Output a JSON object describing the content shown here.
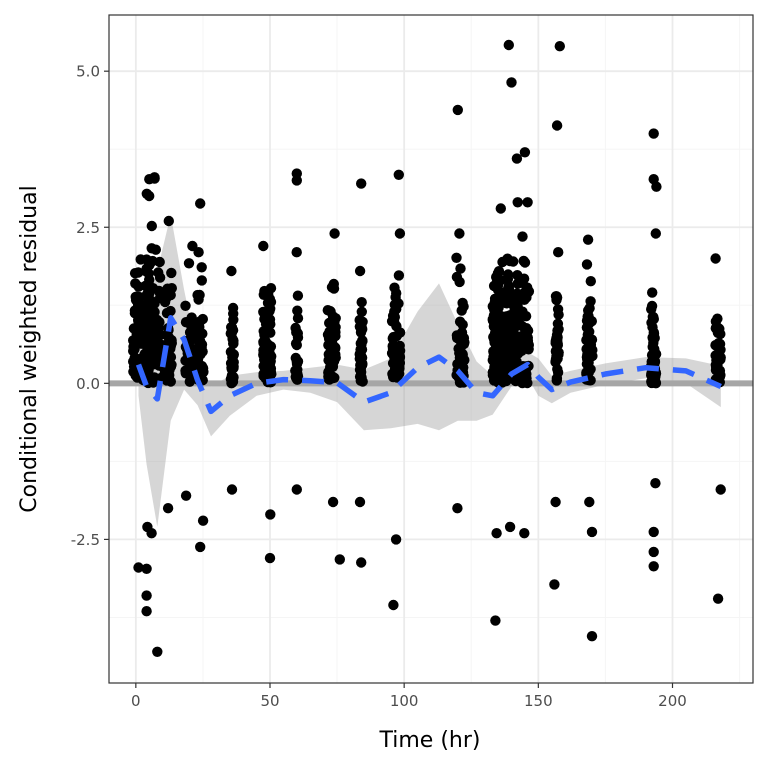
{
  "colors": {
    "background": "#ffffff",
    "panel_border": "#333333",
    "grid_major": "#ebebeb",
    "grid_minor": "#f5f5f5",
    "points": "#000000",
    "smooth_line": "#3366ff",
    "confidence_band": "#999999",
    "reference_line": "#a6a6a6",
    "tick_label": "#4d4d4d"
  },
  "chart_data": {
    "type": "scatter",
    "title": "",
    "xlabel": "Time (hr)",
    "ylabel": "Conditional weighted residual",
    "xlim": [
      -10,
      230
    ],
    "ylim": [
      -4.8,
      5.9
    ],
    "x_ticks": [
      0,
      50,
      100,
      150,
      200
    ],
    "x_tick_labels": [
      "0",
      "50",
      "100",
      "150",
      "200"
    ],
    "y_ticks": [
      -2.5,
      0.0,
      2.5,
      5.0
    ],
    "y_tick_labels": [
      "-2.5",
      "0.0",
      "2.5",
      "5.0"
    ],
    "grid": true,
    "reference_line": {
      "y": 0
    },
    "point_clusters": [
      {
        "x": 2,
        "x_spread": 3,
        "n": 130,
        "ymin": -2.3,
        "ymax": 3.0
      },
      {
        "x": 7,
        "x_spread": 3,
        "n": 90,
        "ymin": -2.4,
        "ymax": 3.3
      },
      {
        "x": 12,
        "x_spread": 1.5,
        "n": 45,
        "ymin": -2.0,
        "ymax": 2.6
      },
      {
        "x": 20,
        "x_spread": 1.5,
        "n": 35,
        "ymin": -1.8,
        "ymax": 2.2
      },
      {
        "x": 24,
        "x_spread": 1.2,
        "n": 40,
        "ymin": -2.2,
        "ymax": 2.1
      },
      {
        "x": 36,
        "x_spread": 0.6,
        "n": 40,
        "ymin": -1.7,
        "ymax": 1.8
      },
      {
        "x": 49,
        "x_spread": 1.5,
        "n": 80,
        "ymin": -2.1,
        "ymax": 2.2
      },
      {
        "x": 60,
        "x_spread": 0.6,
        "n": 25,
        "ymin": -1.7,
        "ymax": 2.1
      },
      {
        "x": 73,
        "x_spread": 1.5,
        "n": 55,
        "ymin": -1.9,
        "ymax": 2.4
      },
      {
        "x": 84,
        "x_spread": 0.6,
        "n": 35,
        "ymin": -1.9,
        "ymax": 1.8
      },
      {
        "x": 97,
        "x_spread": 1.5,
        "n": 60,
        "ymin": -2.5,
        "ymax": 2.4
      },
      {
        "x": 121,
        "x_spread": 1.5,
        "n": 45,
        "ymin": -2.0,
        "ymax": 2.4
      },
      {
        "x": 135,
        "x_spread": 2.0,
        "n": 120,
        "ymin": -2.4,
        "ymax": 2.8
      },
      {
        "x": 140,
        "x_spread": 2.5,
        "n": 120,
        "ymin": -2.3,
        "ymax": 2.9
      },
      {
        "x": 145,
        "x_spread": 1.5,
        "n": 60,
        "ymin": -2.4,
        "ymax": 2.9
      },
      {
        "x": 157,
        "x_spread": 0.6,
        "n": 40,
        "ymin": -1.9,
        "ymax": 2.1
      },
      {
        "x": 169,
        "x_spread": 1.2,
        "n": 45,
        "ymin": -1.9,
        "ymax": 2.3
      },
      {
        "x": 193,
        "x_spread": 1.0,
        "n": 45,
        "ymin": -1.6,
        "ymax": 2.4
      },
      {
        "x": 217,
        "x_spread": 1.0,
        "n": 40,
        "ymin": -1.7,
        "ymax": 2.0
      }
    ],
    "outlier_points": [
      {
        "x": 1,
        "y": -2.95
      },
      {
        "x": 4,
        "y": -2.97
      },
      {
        "x": 4,
        "y": -3.4
      },
      {
        "x": 4,
        "y": -3.65
      },
      {
        "x": 8,
        "y": -4.3
      },
      {
        "x": 5,
        "y": 3.27
      },
      {
        "x": 7,
        "y": 3.28
      },
      {
        "x": 24,
        "y": 2.88
      },
      {
        "x": 24,
        "y": -2.62
      },
      {
        "x": 60,
        "y": 3.36
      },
      {
        "x": 60,
        "y": 3.25
      },
      {
        "x": 50,
        "y": -2.8
      },
      {
        "x": 76,
        "y": -2.82
      },
      {
        "x": 84,
        "y": 3.2
      },
      {
        "x": 84,
        "y": -2.87
      },
      {
        "x": 98,
        "y": 3.34
      },
      {
        "x": 96,
        "y": -3.55
      },
      {
        "x": 120,
        "y": 4.38
      },
      {
        "x": 139,
        "y": 5.42
      },
      {
        "x": 140,
        "y": 4.82
      },
      {
        "x": 142,
        "y": 3.6
      },
      {
        "x": 145,
        "y": 3.7
      },
      {
        "x": 158,
        "y": 5.4
      },
      {
        "x": 157,
        "y": 4.13
      },
      {
        "x": 134,
        "y": -3.8
      },
      {
        "x": 156,
        "y": -3.22
      },
      {
        "x": 170,
        "y": -4.05
      },
      {
        "x": 170,
        "y": -2.38
      },
      {
        "x": 193,
        "y": 4.0
      },
      {
        "x": 193,
        "y": 3.27
      },
      {
        "x": 194,
        "y": 3.15
      },
      {
        "x": 193,
        "y": -2.38
      },
      {
        "x": 193,
        "y": -2.7
      },
      {
        "x": 193,
        "y": -2.93
      },
      {
        "x": 217,
        "y": -3.45
      }
    ],
    "smooth": {
      "name": "loess",
      "x": [
        1,
        4,
        8,
        13,
        18,
        23,
        28,
        35,
        45,
        55,
        65,
        75,
        85,
        95,
        105,
        113,
        120,
        127,
        133,
        140,
        146,
        150,
        155,
        162,
        175,
        190,
        205,
        218
      ],
      "y": [
        0.3,
        -0.05,
        -0.25,
        1.05,
        0.7,
        0.05,
        -0.45,
        -0.2,
        0.0,
        0.06,
        0.04,
        0.01,
        -0.3,
        -0.15,
        0.25,
        0.42,
        0.2,
        -0.15,
        -0.2,
        0.15,
        0.3,
        0.1,
        -0.1,
        0.02,
        0.15,
        0.25,
        0.2,
        -0.05
      ],
      "upper": [
        0.8,
        1.3,
        1.8,
        2.7,
        1.5,
        0.45,
        -0.05,
        0.12,
        0.18,
        0.2,
        0.25,
        0.3,
        0.22,
        0.4,
        1.15,
        1.6,
        0.95,
        0.35,
        0.12,
        0.35,
        0.5,
        0.4,
        0.12,
        0.2,
        0.32,
        0.42,
        0.4,
        0.28
      ],
      "lower": [
        -0.2,
        -1.3,
        -2.3,
        -0.6,
        -0.1,
        -0.35,
        -0.85,
        -0.52,
        -0.2,
        -0.1,
        -0.15,
        -0.3,
        -0.75,
        -0.72,
        -0.65,
        -0.75,
        -0.6,
        -0.6,
        -0.5,
        -0.05,
        0.1,
        -0.2,
        -0.32,
        -0.15,
        -0.02,
        0.08,
        0.0,
        -0.38
      ]
    }
  }
}
